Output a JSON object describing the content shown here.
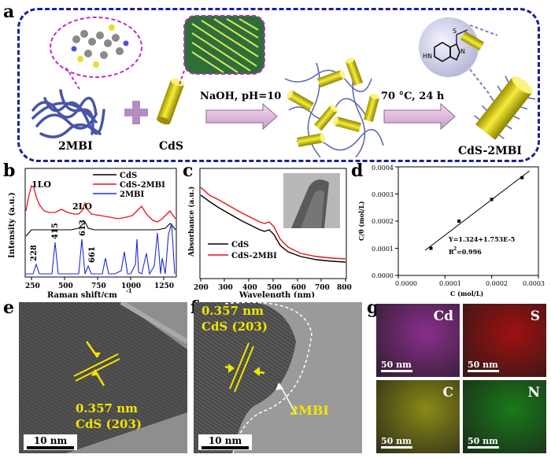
{
  "panel_labels": {
    "a": "a",
    "b": "b",
    "c": "c",
    "d": "d",
    "e": "e",
    "f": "f",
    "g": "g"
  },
  "schematic": {
    "label_2mbi": "2MBI",
    "label_cds": "CdS",
    "arrow1": "NaOH, pH=10",
    "arrow2": "70 °C, 24 h",
    "label_product": "CdS-2MBI",
    "molecule_nh": "HN",
    "molecule_s": "S",
    "molecule_n": "N"
  },
  "raman": {
    "legend": [
      "CdS",
      "CdS-2MBI",
      "2MBI"
    ],
    "series_colors": [
      "#000000",
      "#e8141b",
      "#1f2bd6"
    ],
    "xlabel": "Raman shift/cm",
    "xlabel_sup": "-1",
    "ylabel": "Intensity (a.u.)",
    "xticks": [
      "250",
      "500",
      "750",
      "1000",
      "1250"
    ],
    "peaks": {
      "lo1": "1LO",
      "lo2": "2LO",
      "p228": "228",
      "p415": "415",
      "p613": "613",
      "p661": "661"
    }
  },
  "absorbance": {
    "legend": [
      "CdS",
      "CdS-2MBI"
    ],
    "series_colors": [
      "#000000",
      "#e8141b"
    ],
    "xlabel": "Wavelength (nm)",
    "ylabel": "Absorbance (a.u.)",
    "xticks": [
      "200",
      "300",
      "400",
      "500",
      "600",
      "700",
      "800"
    ]
  },
  "chart_data": {
    "type": "scatter",
    "title": "",
    "xlabel": "C (mol/L)",
    "ylabel": "C/θ (mol/L)",
    "xlim": [
      0.0,
      0.0003
    ],
    "ylim": [
      0.0,
      0.0004
    ],
    "xticks": [
      "0.0000",
      "0.0001",
      "0.0002",
      "0.0003"
    ],
    "yticks": [
      "0.0000",
      "0.0001",
      "0.0002",
      "0.0003",
      "0.0004"
    ],
    "x": [
      7e-05,
      0.00013,
      0.0002,
      0.000265
    ],
    "y": [
      0.0001,
      0.0002,
      0.00028,
      0.00036
    ],
    "fit_equation": "Y=1.324+1.753E-5",
    "r2_label": "R",
    "r2_sup": "2",
    "r2_value": "=0.996"
  },
  "tem_e": {
    "d_spacing": "0.357 nm",
    "plane": "CdS (203)",
    "scale": "10 nm"
  },
  "tem_f": {
    "d_spacing": "0.357 nm",
    "plane": "CdS (203)",
    "coating": "2MBI",
    "scale": "10 nm"
  },
  "eds_maps": [
    {
      "element": "Cd",
      "scale": "50 nm",
      "color": "#8a2f8c"
    },
    {
      "element": "S",
      "scale": "50 nm",
      "color": "#a01010"
    },
    {
      "element": "C",
      "scale": "50 nm",
      "color": "#8a8a16"
    },
    {
      "element": "N",
      "scale": "50 nm",
      "color": "#1a7a1a"
    }
  ]
}
